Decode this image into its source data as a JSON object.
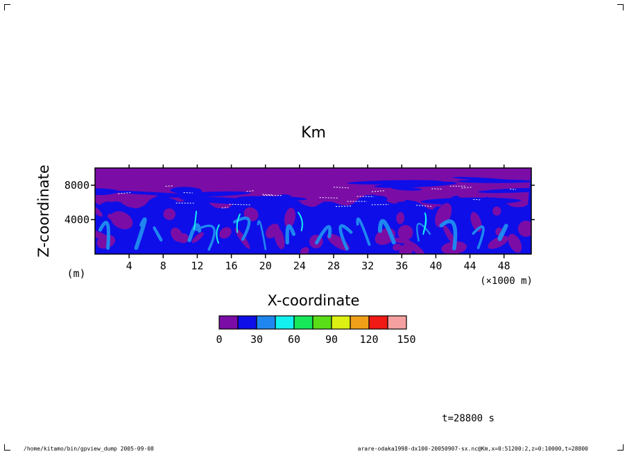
{
  "chart_data": {
    "type": "heatmap",
    "title": "Km",
    "xlabel": "X-coordinate",
    "x_unit": "(×1000 m)",
    "ylabel": "Z-coordinate",
    "y_unit": "(m)",
    "xlim": [
      0,
      51.2
    ],
    "ylim": [
      0,
      10000
    ],
    "x_ticks": [
      4,
      8,
      12,
      16,
      20,
      24,
      28,
      32,
      36,
      40,
      44,
      48
    ],
    "y_ticks": [
      4000,
      8000
    ],
    "grid": false,
    "colorbar": {
      "levels": [
        0,
        15,
        30,
        45,
        60,
        75,
        90,
        105,
        120,
        135,
        150
      ],
      "tick_labels": [
        "0",
        "30",
        "60",
        "90",
        "120",
        "150"
      ],
      "colors": [
        "#7b0da6",
        "#0e0ee8",
        "#1f86f0",
        "#13f0f0",
        "#17e85a",
        "#5ade18",
        "#dcf014",
        "#f0a018",
        "#f01a14",
        "#f5a0a0"
      ]
    },
    "time_label": "t=28800 s"
  },
  "footer": {
    "left": "/home/kitamo/bin/gpview_dump  2005-09-08",
    "right": "arare-odaka1998-dx100-20050907-sx.nc@Km,x=0:51200:2,z=0:10000,t=28800"
  }
}
